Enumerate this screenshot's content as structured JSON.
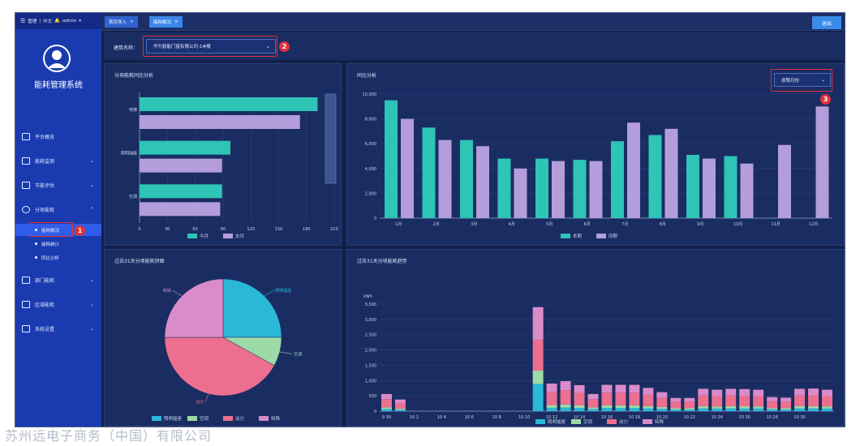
{
  "topbar": {
    "user_text": "管理",
    "lang": "中文",
    "admin": "admin"
  },
  "sidebar": {
    "system_name": "能耗管理系统",
    "items": [
      {
        "label": "平台概览"
      },
      {
        "label": "能耗监测"
      },
      {
        "label": "节能评估"
      },
      {
        "label": "分项能耗"
      },
      {
        "label": "部门能耗"
      },
      {
        "label": "区域能耗"
      },
      {
        "label": "系统设置"
      }
    ],
    "sub_items": [
      {
        "label": "能耗概况"
      },
      {
        "label": "能耗统计"
      },
      {
        "label": "同比分析"
      }
    ]
  },
  "tabs": [
    {
      "label": "首页导入"
    },
    {
      "label": "能耗概况"
    }
  ],
  "exit_label": "退出",
  "filter": {
    "label": "建筑名称：",
    "value": "华为智能门窗有限公司-1#楼"
  },
  "annotations": [
    "1",
    "2",
    "3"
  ],
  "panels": {
    "p1": "分项能耗同比分析",
    "p2": "同比分析",
    "p3": "过去31天分项能耗饼图",
    "p4": "过去31天分项能耗趋势"
  },
  "p2_select": "按照月份",
  "watermark": "苏州远电子商务（中国）有限公司",
  "chart_data": [
    {
      "type": "bar",
      "orientation": "horizontal",
      "categories": [
        "电梯",
        "照明插座",
        "空调"
      ],
      "series": [
        {
          "name": "今月",
          "values": [
            192,
            98,
            89
          ],
          "color": "#2ec4b6"
        },
        {
          "name": "去月",
          "values": [
            173,
            89,
            87
          ],
          "color": "#b39ddb"
        }
      ],
      "xlim": [
        0,
        210
      ],
      "xticks": [
        "0",
        "30",
        "60",
        "90",
        "120",
        "150",
        "180",
        "210"
      ]
    },
    {
      "type": "bar",
      "categories": [
        "1月",
        "2月",
        "3月",
        "4月",
        "5月",
        "6月",
        "7月",
        "8月",
        "9月",
        "10月",
        "11月",
        "12月"
      ],
      "series": [
        {
          "name": "本期",
          "values": [
            9500,
            7300,
            6300,
            4800,
            4800,
            4700,
            6200,
            6700,
            5100,
            5000,
            0,
            0
          ],
          "color": "#2ec4b6"
        },
        {
          "name": "同期",
          "values": [
            8000,
            6300,
            5800,
            4000,
            4600,
            4600,
            7700,
            7200,
            4800,
            4400,
            5900,
            9000
          ],
          "color": "#b39ddb"
        }
      ],
      "ylim": [
        0,
        10000
      ],
      "yticks": [
        "0",
        "2,000",
        "4,000",
        "6,000",
        "8,000",
        "10,000"
      ]
    },
    {
      "type": "pie",
      "slices": [
        {
          "label": "照明插座",
          "value": 25,
          "color": "#29b8d8"
        },
        {
          "label": "空调",
          "value": 8,
          "color": "#9ed9a8"
        },
        {
          "label": "动力",
          "value": 42,
          "color": "#ec6f8f"
        },
        {
          "label": "特殊",
          "value": 25,
          "color": "#d98cc9"
        }
      ]
    },
    {
      "type": "bar",
      "stacked": true,
      "ylabel": "kWh",
      "ylim": [
        0,
        3500
      ],
      "yticks": [
        "0",
        "500",
        "1,000",
        "1,500",
        "2,000",
        "2,500",
        "3,000",
        "3,500"
      ],
      "xticks": [
        "9 30",
        "10 2",
        "10 4",
        "10 6",
        "10 8",
        "10 10",
        "10 12",
        "10 14",
        "10 16",
        "10 18",
        "10 20",
        "10 22",
        "10 24",
        "10 26",
        "10 28",
        "10 30"
      ],
      "series": [
        {
          "name": "照明插座",
          "color": "#29b8d8"
        },
        {
          "name": "空调",
          "color": "#9ed9a8"
        },
        {
          "name": "动力",
          "color": "#ec6f8f"
        },
        {
          "name": "特殊",
          "color": "#d98cc9"
        }
      ],
      "totals": [
        560,
        380,
        0,
        0,
        0,
        0,
        0,
        0,
        0,
        0,
        0,
        3400,
        900,
        980,
        850,
        560,
        860,
        860,
        860,
        760,
        620,
        430,
        430,
        730,
        700,
        730,
        720,
        700,
        460,
        440,
        730,
        740,
        700
      ]
    }
  ]
}
